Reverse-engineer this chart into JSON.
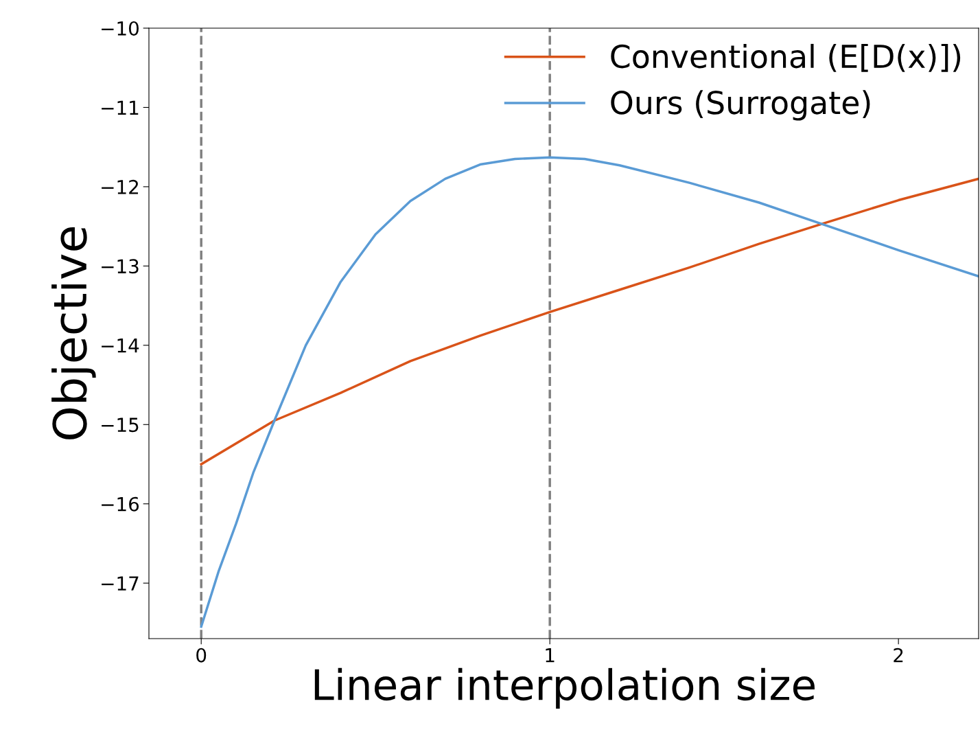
{
  "chart_data": {
    "type": "line",
    "xlabel": "Linear interpolation size",
    "ylabel": "Objective",
    "xlim": [
      -0.15,
      2.23
    ],
    "ylim": [
      -17.7,
      -10
    ],
    "xticks": [
      0,
      1,
      2
    ],
    "yticks": [
      {
        "value": -10,
        "label": "−10"
      },
      {
        "value": -11,
        "label": "−11"
      },
      {
        "value": -12,
        "label": "−12"
      },
      {
        "value": -13,
        "label": "−13"
      },
      {
        "value": -14,
        "label": "−14"
      },
      {
        "value": -15,
        "label": "−15"
      },
      {
        "value": -16,
        "label": "−16"
      },
      {
        "value": -17,
        "label": "−17"
      }
    ],
    "grid": false,
    "legend": "top right",
    "line_style": "solid",
    "marker": "none",
    "ref_lines": [
      {
        "axis": "x",
        "value": 0,
        "color": "#808080",
        "line_style": "dashed"
      },
      {
        "axis": "x",
        "value": 1,
        "color": "#808080",
        "line_style": "dashed"
      }
    ],
    "series": [
      {
        "name": "Conventional (E[D(x)])",
        "color": "#d95319",
        "x": [
          0,
          0.21,
          0.4,
          0.6,
          0.8,
          1.0,
          1.2,
          1.4,
          1.6,
          1.78,
          2.0,
          2.23
        ],
        "values": [
          -15.5,
          -14.95,
          -14.6,
          -14.2,
          -13.88,
          -13.58,
          -13.3,
          -13.02,
          -12.72,
          -12.47,
          -12.17,
          -11.9
        ]
      },
      {
        "name": "Ours (Surrogate)",
        "color": "#5a9bd5",
        "x": [
          0,
          0.05,
          0.1,
          0.15,
          0.21,
          0.3,
          0.4,
          0.5,
          0.6,
          0.7,
          0.8,
          0.9,
          1.0,
          1.1,
          1.2,
          1.4,
          1.6,
          1.78,
          2.0,
          2.23
        ],
        "values": [
          -17.55,
          -16.85,
          -16.25,
          -15.6,
          -14.95,
          -14.0,
          -13.2,
          -12.6,
          -12.18,
          -11.9,
          -11.72,
          -11.65,
          -11.63,
          -11.65,
          -11.73,
          -11.95,
          -12.2,
          -12.47,
          -12.8,
          -13.13
        ]
      }
    ]
  }
}
